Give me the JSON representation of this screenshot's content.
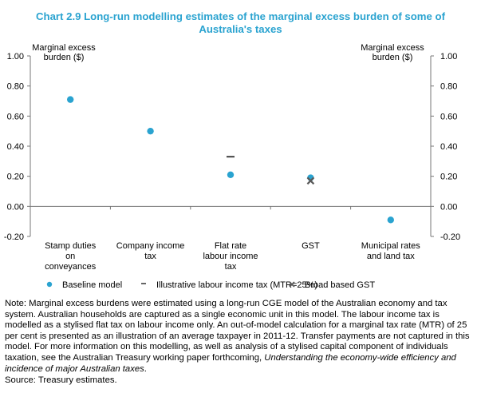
{
  "header": {
    "title_line1": "Chart 2.9 Long-run modelling estimates of the marginal excess burden of some of",
    "title_line2": "Australia's taxes"
  },
  "chart_data": {
    "type": "scatter",
    "title": "Chart 2.9 Long-run modelling estimates of the marginal excess burden of some of Australia's taxes",
    "ylabel_left": [
      "Marginal excess",
      "burden ($)"
    ],
    "ylabel_right": [
      "Marginal excess",
      "burden ($)"
    ],
    "ylim": [
      -0.2,
      1.0
    ],
    "ytick_labels": [
      "1.00",
      "0.80",
      "0.60",
      "0.40",
      "0.20",
      "0.00",
      "-0.20"
    ],
    "categories": [
      [
        "Stamp duties",
        "on",
        "conveyances"
      ],
      [
        "Company income",
        "tax"
      ],
      [
        "Flat rate",
        "labour income",
        "tax"
      ],
      [
        "GST"
      ],
      [
        "Municipal rates",
        "and land tax"
      ]
    ],
    "series": [
      {
        "name": "Baseline model",
        "marker": "circle",
        "color": "#2aa3d0",
        "values": [
          0.71,
          0.5,
          0.21,
          0.19,
          -0.09
        ]
      },
      {
        "name": "Illustrative labour income tax (MTR=25%)",
        "marker": "dash",
        "color": "#404040",
        "values": [
          null,
          null,
          0.33,
          null,
          null
        ]
      },
      {
        "name": "Broad based GST",
        "marker": "x",
        "color": "#5a5a5a",
        "values": [
          null,
          null,
          null,
          0.17,
          null
        ]
      }
    ],
    "grid": false,
    "legend_position": "bottom"
  },
  "note": {
    "text_part1": "Note: Marginal excess burdens were estimated using a long-run CGE model of the Australian economy and tax system. Australian households are captured as a single economic unit in this model. The labour income tax is modelled as a stylised flat tax on labour income only. An out-of-model calculation for a marginal tax rate (MTR) of 25 per cent is presented as an illustration of an average taxpayer in 2011-12. Transfer payments are not captured in this model. For more information on this modelling, as well as analysis of a stylised capital component of individuals taxation, see the Australian Treasury working paper forthcoming, ",
    "italic_part": "Understanding the economy-wide efficiency and incidence of major Australian taxes",
    "text_part2": ".",
    "source": "Source: Treasury estimates."
  }
}
